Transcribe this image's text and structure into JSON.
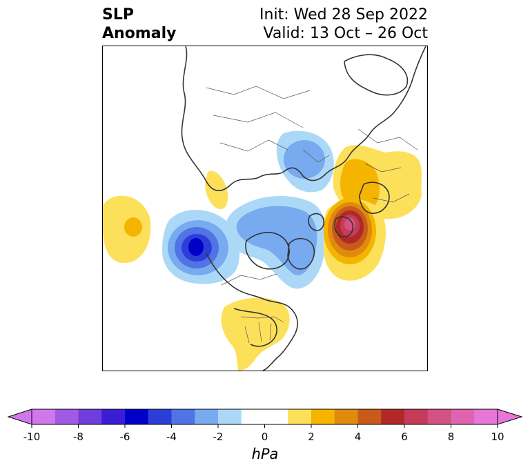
{
  "title": {
    "left": "SLP\nAnomaly",
    "init": "Init: Wed 28 Sep 2022",
    "valid": "Valid: 13 Oct – 26 Oct"
  },
  "colorbar": {
    "min": -10,
    "max": 10,
    "step": 1,
    "extend": "both",
    "unit": "hPa",
    "tick_labels": [
      "-10",
      "-8",
      "-6",
      "-4",
      "-2",
      "0",
      "2",
      "4",
      "6",
      "8",
      "10"
    ],
    "colors": [
      "#d177ec",
      "#a15ae4",
      "#6e3ddb",
      "#3a1ed5",
      "#0000c9",
      "#2b3ed7",
      "#5074e5",
      "#78aaf0",
      "#acd8f8",
      "#ffffff",
      "#ffffff",
      "#fde05a",
      "#f4b400",
      "#e08a0e",
      "#c85a1a",
      "#b22828",
      "#c43c5a",
      "#d25282",
      "#de64b0",
      "#e676d8"
    ]
  },
  "anomalies": [
    {
      "name": "north-pacific-positive",
      "sign": "positive",
      "peak_hpa": 2.5
    },
    {
      "name": "northeast-pacific-negative",
      "sign": "negative",
      "peak_hpa": -6
    },
    {
      "name": "arctic-negative",
      "sign": "negative",
      "peak_hpa": -3
    },
    {
      "name": "siberia-negative",
      "sign": "negative",
      "peak_hpa": -2.5
    },
    {
      "name": "europe-positive",
      "sign": "positive",
      "peak_hpa": 3
    },
    {
      "name": "north-atlantic-positive",
      "sign": "positive",
      "peak_hpa": 7.5
    },
    {
      "name": "central-us-positive",
      "sign": "positive",
      "peak_hpa": 1.5
    },
    {
      "name": "east-asia-positive",
      "sign": "positive",
      "peak_hpa": 1.5
    }
  ]
}
